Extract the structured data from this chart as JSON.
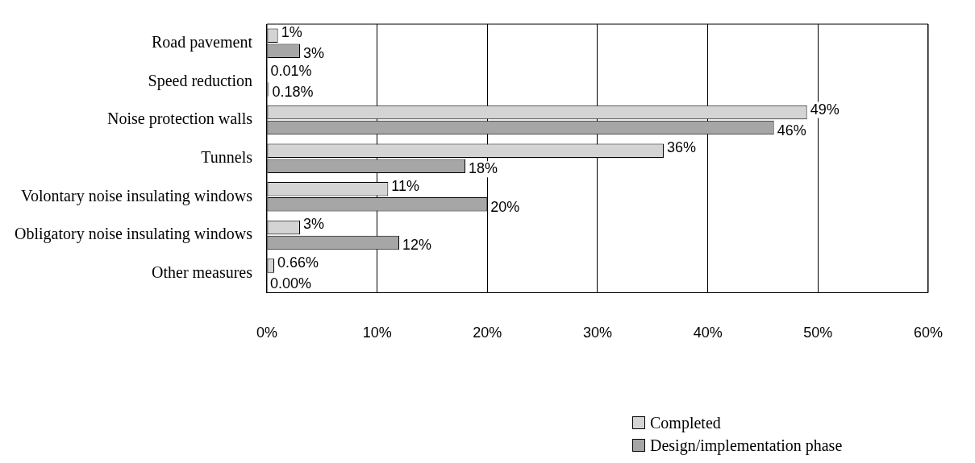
{
  "chart_data": {
    "type": "bar",
    "orientation": "horizontal",
    "categories": [
      "Road pavement",
      "Speed reduction",
      "Noise protection walls",
      "Tunnels",
      "Volontary noise insulating windows",
      "Obligatory noise insulating windows",
      "Other measures"
    ],
    "series": [
      {
        "name": "Completed",
        "color": "#d4d4d4",
        "values": [
          1,
          0.01,
          49,
          36,
          11,
          3,
          0.66
        ],
        "value_labels": [
          "1%",
          "0.01%",
          "49%",
          "36%",
          "11%",
          "3%",
          "0.66%"
        ]
      },
      {
        "name": "Design/implementation phase",
        "color": "#a6a6a6",
        "values": [
          3,
          0.18,
          46,
          18,
          20,
          12,
          0
        ],
        "value_labels": [
          "3%",
          "0.18%",
          "46%",
          "18%",
          "20%",
          "12%",
          "0.00%"
        ]
      }
    ],
    "xlim": [
      0,
      60
    ],
    "xticks": [
      {
        "value": 0,
        "label": "0%"
      },
      {
        "value": 10,
        "label": "10%"
      },
      {
        "value": 20,
        "label": "20%"
      },
      {
        "value": 30,
        "label": "30%"
      },
      {
        "value": 40,
        "label": "40%"
      },
      {
        "value": 50,
        "label": "50%"
      },
      {
        "value": 60,
        "label": "60%"
      }
    ],
    "grid": "x",
    "legend": "bottom right"
  }
}
